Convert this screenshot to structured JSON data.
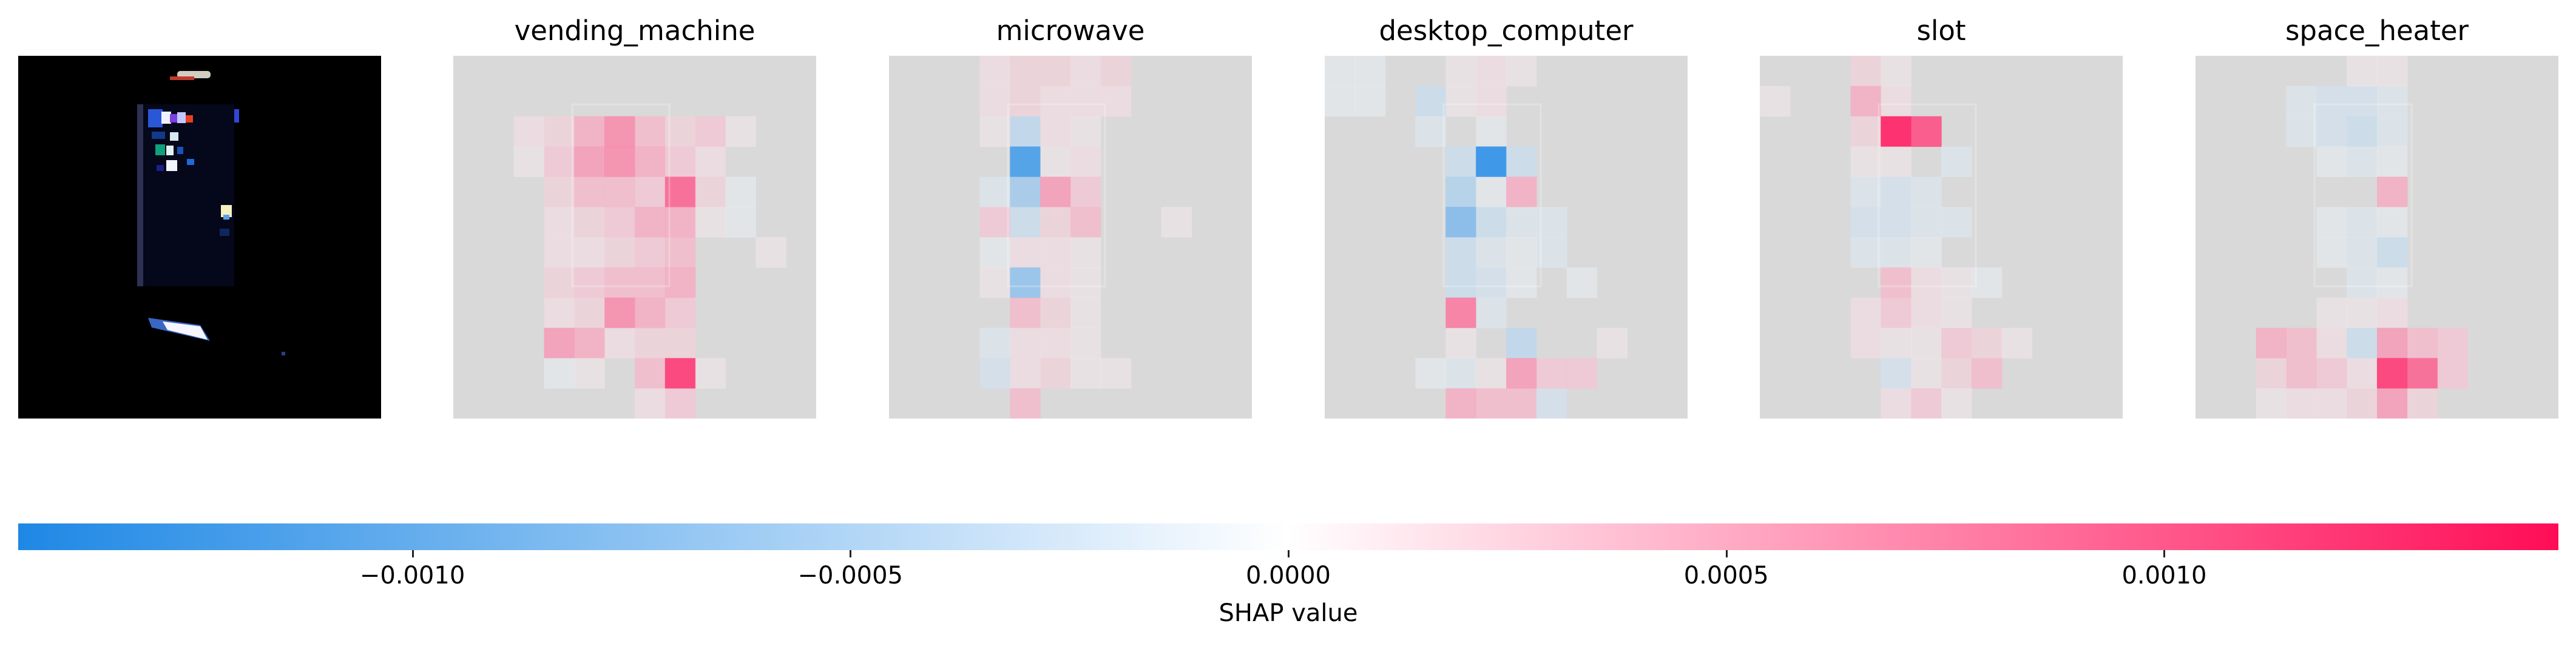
{
  "chart_data": {
    "type": "heatmap",
    "description_of_input": "one input image followed by one SHAP explanation map per predicted class",
    "classes": [
      "vending_machine",
      "microwave",
      "desktop_computer",
      "slot",
      "space_heater"
    ],
    "grid": {
      "rows": 12,
      "cols": 12
    },
    "colorbar": {
      "label": "SHAP value",
      "range": [
        -0.00145,
        0.00145
      ],
      "ticks": [
        -0.001,
        -0.0005,
        0.0,
        0.0005,
        0.001
      ],
      "tick_labels": [
        "−0.0010",
        "−0.0005",
        "0.0000",
        "0.0005",
        "0.0010"
      ],
      "negative_color": "#1e88e5",
      "midpoint_color": "#ffffff",
      "positive_color": "#ff0d57"
    },
    "shap_maps": [
      {
        "name": "vending_machine",
        "values": [
          [
            0,
            0,
            0,
            0,
            0,
            0,
            0,
            0,
            0,
            0,
            0,
            0
          ],
          [
            0,
            0,
            0,
            0,
            0,
            0,
            0,
            0,
            0,
            0,
            0,
            0
          ],
          [
            0,
            0,
            0.0002,
            0.0003,
            0.0006,
            0.0008,
            0.0005,
            0.0003,
            0.0004,
            0.0001,
            0,
            0
          ],
          [
            0,
            0,
            0.0001,
            0.0004,
            0.0007,
            0.0008,
            0.0006,
            0.0004,
            0.0002,
            0,
            0,
            0
          ],
          [
            0,
            0,
            0,
            0.0003,
            0.0005,
            0.0005,
            0.0004,
            0.001,
            0.0003,
            -0.0001,
            0,
            0
          ],
          [
            0,
            0,
            0,
            0.0002,
            0.0003,
            0.0004,
            0.0006,
            0.0006,
            0.0001,
            -0.0001,
            0,
            0
          ],
          [
            0,
            0,
            0,
            0.0002,
            0.0002,
            0.0003,
            0.0004,
            0.0005,
            0,
            0,
            0.0001,
            0
          ],
          [
            0,
            0,
            0,
            0.0003,
            0.0004,
            0.0005,
            0.0005,
            0.0006,
            0,
            0,
            0,
            0
          ],
          [
            0,
            0,
            0,
            0.0002,
            0.0003,
            0.0008,
            0.0006,
            0.0004,
            0,
            0,
            0,
            0
          ],
          [
            0,
            0,
            0,
            0.0007,
            0.0006,
            0.0002,
            0.0003,
            0.0003,
            0,
            0,
            0,
            0
          ],
          [
            0,
            0,
            0,
            -0.0001,
            0.0001,
            0,
            0.0005,
            0.0012,
            0.0001,
            0,
            0,
            0
          ],
          [
            0,
            0,
            0,
            0,
            0,
            0,
            0.0002,
            0.0004,
            0,
            0,
            0,
            0
          ]
        ]
      },
      {
        "name": "microwave",
        "values": [
          [
            0,
            0,
            0,
            0.0002,
            0.0003,
            0.0003,
            0.0002,
            0.0003,
            0,
            0,
            0,
            0
          ],
          [
            0,
            0,
            0,
            0.0002,
            0.0003,
            0.0002,
            0.0002,
            0.0002,
            0,
            0,
            0,
            0
          ],
          [
            0,
            0,
            0,
            0.0001,
            -0.0005,
            0.0002,
            0.0001,
            0,
            0,
            0,
            0,
            0
          ],
          [
            0,
            0,
            0,
            0,
            -0.0012,
            0.0001,
            0.0002,
            0,
            0,
            0,
            0,
            0
          ],
          [
            0,
            0,
            0,
            -0.0002,
            -0.0007,
            0.0007,
            0.0004,
            0,
            0,
            0,
            0,
            0
          ],
          [
            0,
            0,
            0,
            0.0004,
            -0.0004,
            0.0003,
            0.0005,
            0,
            0,
            0.0001,
            0,
            0
          ],
          [
            0,
            0,
            0,
            -0.0001,
            0.0002,
            0.0002,
            0.0001,
            0,
            0,
            0,
            0,
            0
          ],
          [
            0,
            0,
            0,
            0.0001,
            -0.0008,
            0.0002,
            0.0001,
            0,
            0,
            0,
            0,
            0
          ],
          [
            0,
            0,
            0,
            0,
            0.0005,
            0.0003,
            0.0001,
            0,
            0,
            0,
            0,
            0
          ],
          [
            0,
            0,
            0,
            -0.0002,
            0.0002,
            0.0002,
            0.0001,
            0,
            0,
            0,
            0,
            0
          ],
          [
            0,
            0,
            0,
            -0.0003,
            0.0002,
            0.0003,
            0.0001,
            0.0001,
            0,
            0,
            0,
            0
          ],
          [
            0,
            0,
            0,
            0,
            0.0005,
            0,
            0,
            0,
            0,
            0,
            0,
            0
          ]
        ]
      },
      {
        "name": "desktop_computer",
        "values": [
          [
            -0.0001,
            -0.0001,
            0,
            0,
            0.0001,
            0.0002,
            0.0001,
            0,
            0,
            0,
            0,
            0
          ],
          [
            -0.0001,
            -0.0001,
            0,
            -0.0004,
            0.0001,
            0.0002,
            0,
            0,
            0,
            0,
            0,
            0
          ],
          [
            0,
            0,
            0,
            -0.0002,
            0,
            -0.0001,
            0,
            0,
            0,
            0,
            0,
            0
          ],
          [
            0,
            0,
            0,
            0,
            -0.0004,
            -0.0013,
            -0.0004,
            0,
            0,
            0,
            0,
            0
          ],
          [
            0,
            0,
            0,
            0,
            -0.0006,
            -0.0001,
            0.0006,
            0,
            0,
            0,
            0,
            0
          ],
          [
            0,
            0,
            0,
            0,
            -0.0009,
            -0.0004,
            -0.0002,
            -0.0002,
            0,
            0,
            0,
            0
          ],
          [
            0,
            0,
            0,
            0,
            -0.0004,
            -0.0002,
            -0.0001,
            -0.0002,
            0,
            0,
            0,
            0
          ],
          [
            0,
            0,
            0,
            0,
            -0.0004,
            -0.0003,
            -0.0001,
            0,
            -0.0001,
            0,
            0,
            0
          ],
          [
            0,
            0,
            0,
            0,
            0.0009,
            -0.0002,
            0,
            0,
            0,
            0,
            0,
            0
          ],
          [
            0,
            0,
            0,
            0,
            0.0001,
            0,
            -0.0005,
            0,
            0,
            0.0001,
            0,
            0
          ],
          [
            0,
            0,
            0,
            -0.0001,
            -0.0002,
            0.0001,
            0.0007,
            0.0004,
            0.0004,
            0,
            0,
            0
          ],
          [
            0,
            0,
            0,
            0,
            0.0006,
            0.0005,
            0.0005,
            -0.0003,
            0,
            0,
            0,
            0
          ]
        ]
      },
      {
        "name": "slot",
        "values": [
          [
            0,
            0,
            0,
            0.0003,
            0.0001,
            0,
            0,
            0,
            0,
            0,
            0,
            0
          ],
          [
            0.0001,
            0,
            0,
            0.0006,
            0.0002,
            0,
            0,
            0,
            0,
            0,
            0,
            0
          ],
          [
            0,
            0,
            0,
            0.0003,
            0.0013,
            0.0011,
            0,
            0,
            0,
            0,
            0,
            0
          ],
          [
            0,
            0,
            0,
            0.0001,
            0.0001,
            0,
            -0.0002,
            0,
            0,
            0,
            0,
            0
          ],
          [
            0,
            0,
            0,
            -0.0002,
            -0.0003,
            -0.0002,
            0,
            0,
            0,
            0,
            0,
            0
          ],
          [
            0,
            0,
            0,
            -0.0003,
            -0.0003,
            -0.0002,
            -0.0002,
            0,
            0,
            0,
            0,
            0
          ],
          [
            0,
            0,
            0,
            -0.0002,
            -0.0002,
            -0.0001,
            0,
            0,
            0,
            0,
            0,
            0
          ],
          [
            0,
            0,
            0,
            0,
            0.0005,
            0.0002,
            0.0001,
            -0.0001,
            0,
            0,
            0,
            0
          ],
          [
            0,
            0,
            0,
            0.0002,
            0.0004,
            0.0002,
            0.0001,
            0,
            0,
            0,
            0,
            0
          ],
          [
            0,
            0,
            0,
            0.0002,
            0.0001,
            0.0001,
            0.0004,
            0.0003,
            0.0001,
            0,
            0,
            0
          ],
          [
            0,
            0,
            0,
            0,
            -0.0003,
            0.0001,
            0.0003,
            0.0005,
            0,
            0,
            0,
            0
          ],
          [
            0,
            0,
            0,
            0,
            0.0002,
            0.0004,
            0.0001,
            0,
            0,
            0,
            0,
            0
          ]
        ]
      },
      {
        "name": "space_heater",
        "values": [
          [
            0,
            0,
            0,
            0,
            0,
            0.0001,
            0.0001,
            0,
            0,
            0,
            0,
            0
          ],
          [
            0,
            0,
            0,
            -0.0002,
            -0.0003,
            -0.0003,
            -0.0002,
            0,
            0,
            0,
            0,
            0
          ],
          [
            0,
            0,
            0,
            -0.0002,
            -0.0003,
            -0.0004,
            -0.0002,
            0,
            0,
            0,
            0,
            0
          ],
          [
            0,
            0,
            0,
            0,
            -0.0001,
            -0.0002,
            -0.0001,
            0,
            0,
            0,
            0,
            0
          ],
          [
            0,
            0,
            0,
            0,
            0,
            0,
            0.0006,
            0,
            0,
            0,
            0,
            0
          ],
          [
            0,
            0,
            0,
            0,
            -0.0001,
            -0.0002,
            -0.0001,
            0,
            0,
            0,
            0,
            0
          ],
          [
            0,
            0,
            0,
            0,
            -0.0001,
            -0.0002,
            -0.0004,
            0,
            0,
            0,
            0,
            0
          ],
          [
            0,
            0,
            0,
            0,
            0,
            -0.0002,
            -0.0001,
            0,
            0,
            0,
            0,
            0
          ],
          [
            0,
            0,
            0,
            0,
            0.0001,
            0.0001,
            0.0002,
            0,
            0,
            0,
            0,
            0
          ],
          [
            0,
            0,
            0.0006,
            0.0005,
            0.0002,
            -0.0004,
            0.0007,
            0.0005,
            0.0004,
            0,
            0,
            0
          ],
          [
            0,
            0,
            0.0003,
            0.0005,
            0.0004,
            0.0002,
            0.0012,
            0.001,
            0.0004,
            0,
            0,
            0
          ],
          [
            0,
            0,
            0.0001,
            0.0002,
            0.0002,
            0.0003,
            0.0007,
            0.0003,
            0,
            0,
            0,
            0
          ]
        ]
      }
    ]
  }
}
